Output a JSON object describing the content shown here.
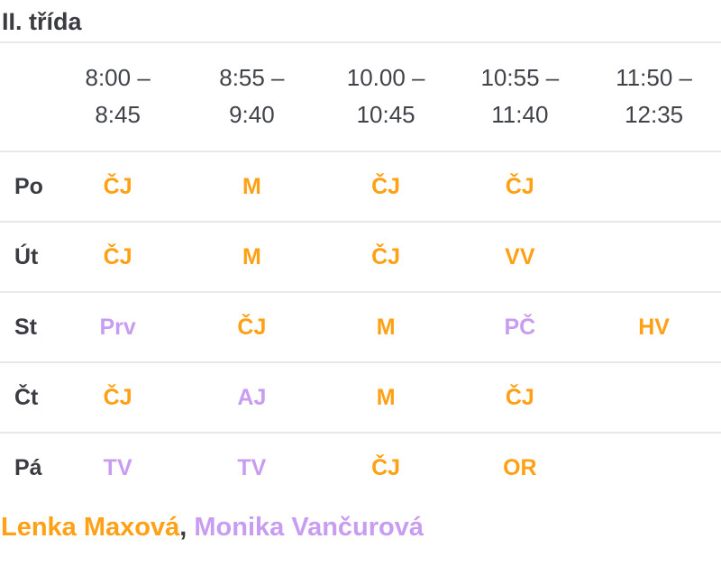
{
  "page": {
    "title": "II. třída"
  },
  "colors": {
    "orange_teacher1": "#ffa015",
    "purple_teacher2": "#c89df1",
    "text_dark": "#3b3c41",
    "row_border": "#e9e9e9",
    "background": "#ffffff"
  },
  "timetable": {
    "periods": [
      {
        "line1": "8:00 –",
        "line2": "8:45"
      },
      {
        "line1": "8:55 –",
        "line2": "9:40"
      },
      {
        "line1": "10.00 –",
        "line2": "10:45"
      },
      {
        "line1": "10:55 –",
        "line2": "11:40"
      },
      {
        "line1": "11:50 –",
        "line2": "12:35"
      }
    ],
    "rows": [
      {
        "day": "Po",
        "cells": [
          {
            "label": "ČJ",
            "color": "orange"
          },
          {
            "label": "M",
            "color": "orange"
          },
          {
            "label": "ČJ",
            "color": "orange"
          },
          {
            "label": "ČJ",
            "color": "orange"
          },
          {
            "label": "",
            "color": ""
          }
        ]
      },
      {
        "day": "Út",
        "cells": [
          {
            "label": "ČJ",
            "color": "orange"
          },
          {
            "label": "M",
            "color": "orange"
          },
          {
            "label": "ČJ",
            "color": "orange"
          },
          {
            "label": "VV",
            "color": "orange"
          },
          {
            "label": "",
            "color": ""
          }
        ]
      },
      {
        "day": "St",
        "cells": [
          {
            "label": "Prv",
            "color": "purple"
          },
          {
            "label": "ČJ",
            "color": "orange"
          },
          {
            "label": "M",
            "color": "orange"
          },
          {
            "label": "PČ",
            "color": "purple"
          },
          {
            "label": "HV",
            "color": "orange"
          }
        ]
      },
      {
        "day": "Čt",
        "cells": [
          {
            "label": "ČJ",
            "color": "orange"
          },
          {
            "label": "AJ",
            "color": "purple"
          },
          {
            "label": "M",
            "color": "orange"
          },
          {
            "label": "ČJ",
            "color": "orange"
          },
          {
            "label": "",
            "color": ""
          }
        ]
      },
      {
        "day": "Pá",
        "cells": [
          {
            "label": "TV",
            "color": "purple"
          },
          {
            "label": "TV",
            "color": "purple"
          },
          {
            "label": "ČJ",
            "color": "orange"
          },
          {
            "label": "OR",
            "color": "orange"
          },
          {
            "label": "",
            "color": ""
          }
        ]
      }
    ]
  },
  "teachers": {
    "separator": ", ",
    "items": [
      {
        "name": "Lenka Maxová",
        "color": "orange"
      },
      {
        "name": "Monika Vančurová",
        "color": "purple"
      }
    ]
  }
}
